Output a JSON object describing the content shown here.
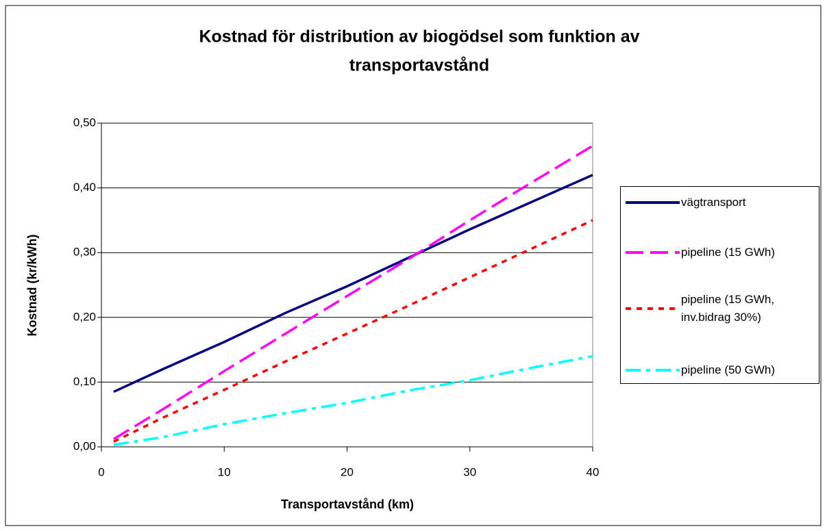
{
  "chart_data": {
    "type": "line",
    "title": [
      "Kostnad för distribution av biogödsel som funktion av",
      "transportavstånd"
    ],
    "x_label": "Transportavstånd (km)",
    "y_label": "Kostnad (kr/kWh)",
    "x": [
      1,
      5,
      10,
      15,
      20,
      25,
      30,
      35,
      40
    ],
    "series": [
      {
        "name": "vägtransport",
        "color": "#000080",
        "dash": "solid",
        "values": [
          0.085,
          0.12,
          0.162,
          0.207,
          0.248,
          0.292,
          0.336,
          0.378,
          0.42
        ]
      },
      {
        "name": "pipeline (15 GWh)",
        "color": "#ff00ff",
        "dash": "dashed",
        "values": [
          0.012,
          0.058,
          0.117,
          0.175,
          0.233,
          0.29,
          0.35,
          0.408,
          0.465
        ]
      },
      {
        "name": "pipeline (15 GWh, inv.bidrag 30%)",
        "color": "#ff0000",
        "dash": "dotted",
        "values": [
          0.008,
          0.045,
          0.088,
          0.132,
          0.175,
          0.218,
          0.262,
          0.306,
          0.35
        ]
      },
      {
        "name": "pipeline (50 GWh)",
        "color": "#00ffff",
        "dash": "dashdot",
        "values": [
          0.003,
          0.015,
          0.035,
          0.052,
          0.068,
          0.087,
          0.103,
          0.122,
          0.14
        ]
      }
    ],
    "xlim": [
      0,
      40
    ],
    "xticks": [
      0,
      10,
      20,
      30,
      40
    ],
    "ylim": [
      0,
      0.5
    ],
    "yticks": [
      {
        "value": 0,
        "label": "0,00"
      },
      {
        "value": 0.1,
        "label": "0,10"
      },
      {
        "value": 0.2,
        "label": "0,20"
      },
      {
        "value": 0.3,
        "label": "0,30"
      },
      {
        "value": 0.4,
        "label": "0,40"
      },
      {
        "value": 0.5,
        "label": "0,50"
      }
    ],
    "grid": true,
    "legend": "right"
  }
}
